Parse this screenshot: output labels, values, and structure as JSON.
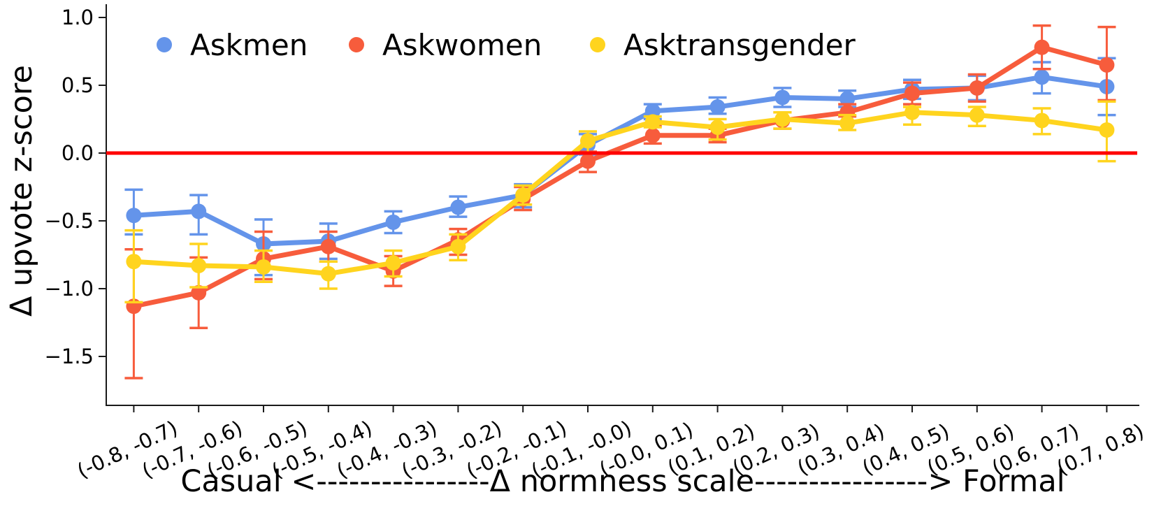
{
  "figure": {
    "ylabel": "Δ upvote z-score",
    "xlabel": "Casual <----------------Δ normness scale----------------> Formal"
  },
  "chart_data": {
    "type": "line",
    "title": "",
    "ylabel": "Δ upvote z-score",
    "xlabel": "Casual <----------------Δ normness scale----------------> Formal",
    "x_axis_left_meaning": "Casual",
    "x_axis_right_meaning": "Formal",
    "grid": false,
    "legend_position": "top-left-inside, horizontal row",
    "ylim": [
      -1.75,
      1.12
    ],
    "y_ticks": [
      1.0,
      0.5,
      0.0,
      -0.5,
      -1.0,
      -1.5
    ],
    "y_tick_labels": [
      "1.0",
      "0.5",
      "0.0",
      "−0.5",
      "−1.0",
      "−1.5"
    ],
    "categories": [
      "(-0.8, -0.7)",
      "(-0.7, -0.6)",
      "(-0.6, -0.5)",
      "(-0.5, -0.4)",
      "(-0.4, -0.3)",
      "(-0.3, -0.2)",
      "(-0.2, -0.1)",
      "(-0.1, -0.0)",
      "(-0.0, 0.1)",
      "(0.1, 0.2)",
      "(0.2, 0.3)",
      "(0.3, 0.4)",
      "(0.4, 0.5)",
      "(0.5, 0.6)",
      "(0.6, 0.7)",
      "(0.7, 0.8)"
    ],
    "zero_line": {
      "value": 0.0,
      "color": "#FF0000"
    },
    "series": [
      {
        "name": "Askmen",
        "color": "#6494EA",
        "values": [
          -0.46,
          -0.43,
          -0.67,
          -0.65,
          -0.51,
          -0.4,
          -0.31,
          0.06,
          0.31,
          0.34,
          0.41,
          0.4,
          0.47,
          0.48,
          0.56,
          0.49
        ],
        "err_lo": [
          -0.6,
          -0.6,
          -0.9,
          -0.78,
          -0.59,
          -0.47,
          -0.4,
          -0.01,
          0.25,
          0.29,
          0.34,
          0.34,
          0.4,
          0.39,
          0.44,
          0.28
        ],
        "err_hi": [
          -0.27,
          -0.31,
          -0.49,
          -0.52,
          -0.43,
          -0.32,
          -0.23,
          0.14,
          0.36,
          0.41,
          0.48,
          0.46,
          0.54,
          0.57,
          0.67,
          0.7
        ]
      },
      {
        "name": "Askwomen",
        "color": "#F75C3C",
        "values": [
          -1.13,
          -1.03,
          -0.78,
          -0.69,
          -0.87,
          -0.64,
          -0.34,
          -0.06,
          0.13,
          0.13,
          0.24,
          0.3,
          0.44,
          0.48,
          0.78,
          0.65
        ],
        "err_lo": [
          -1.66,
          -1.29,
          -0.93,
          -0.8,
          -0.98,
          -0.75,
          -0.42,
          -0.14,
          0.07,
          0.08,
          0.18,
          0.27,
          0.36,
          0.38,
          0.62,
          0.39
        ],
        "err_hi": [
          -0.71,
          -0.77,
          -0.58,
          -0.58,
          -0.76,
          -0.56,
          -0.25,
          0.01,
          0.2,
          0.18,
          0.3,
          0.36,
          0.52,
          0.58,
          0.94,
          0.93
        ]
      },
      {
        "name": "Asktransgender",
        "color": "#FFD41E",
        "values": [
          -0.8,
          -0.83,
          -0.84,
          -0.89,
          -0.81,
          -0.69,
          -0.31,
          0.09,
          0.23,
          0.19,
          0.25,
          0.22,
          0.3,
          0.28,
          0.24,
          0.17
        ],
        "err_lo": [
          -1.1,
          -0.99,
          -0.95,
          -1.0,
          -0.91,
          -0.79,
          -0.38,
          0.0,
          0.19,
          0.1,
          0.18,
          0.17,
          0.21,
          0.2,
          0.14,
          -0.06
        ],
        "err_hi": [
          -0.57,
          -0.67,
          -0.72,
          -0.8,
          -0.72,
          -0.6,
          -0.24,
          0.16,
          0.27,
          0.25,
          0.3,
          0.28,
          0.34,
          0.34,
          0.33,
          0.38
        ]
      }
    ]
  }
}
